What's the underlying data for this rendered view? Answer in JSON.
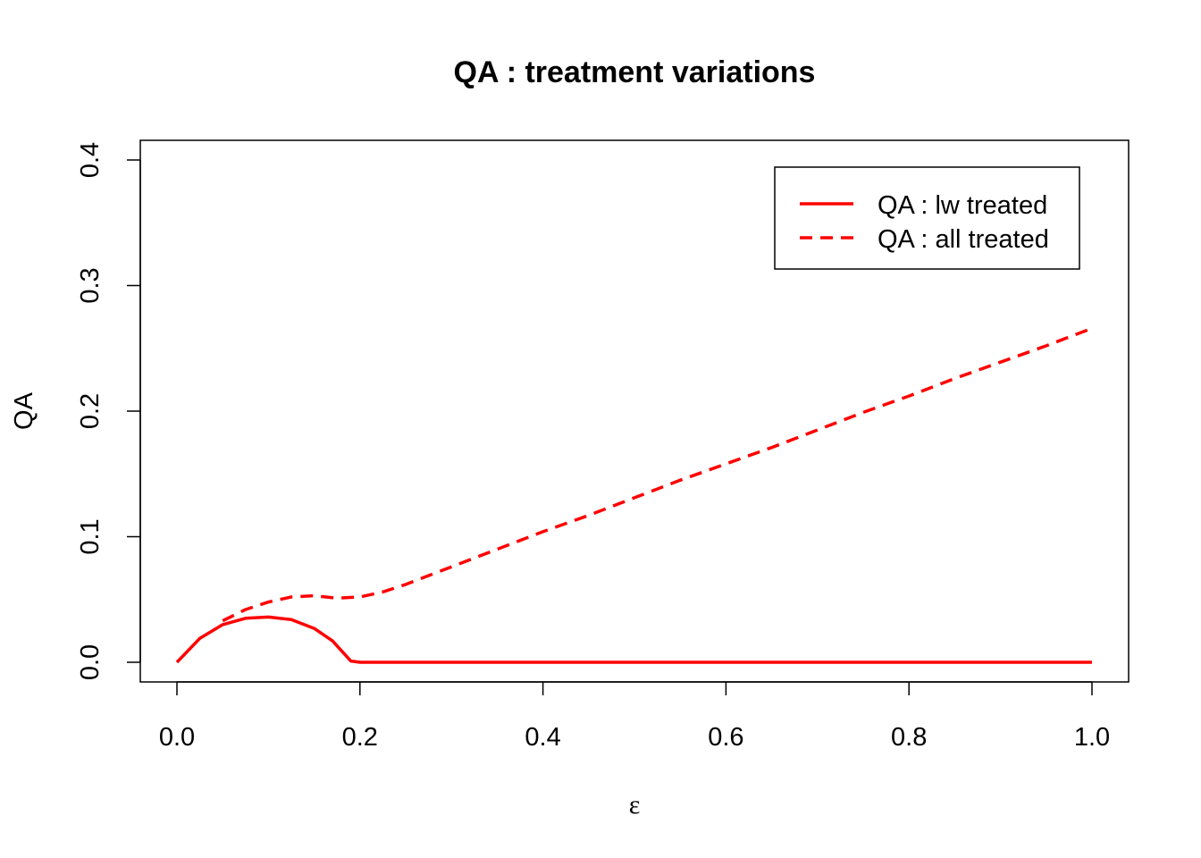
{
  "chart_data": {
    "type": "line",
    "title": "QA : treatment variations",
    "xlabel": "ε",
    "ylabel": "QA",
    "xlim": [
      0,
      1
    ],
    "ylim": [
      0,
      0.4
    ],
    "x_ticks": [
      "0.0",
      "0.2",
      "0.4",
      "0.6",
      "0.8",
      "1.0"
    ],
    "y_ticks": [
      "0.0",
      "0.1",
      "0.2",
      "0.3",
      "0.4"
    ],
    "legend_position": "top-right",
    "grid": false,
    "series": [
      {
        "name": "QA : lw treated",
        "color": "#ff0000",
        "linestyle": "solid",
        "x": [
          0,
          0.025,
          0.05,
          0.075,
          0.1,
          0.125,
          0.15,
          0.17,
          0.19,
          0.2,
          0.3,
          0.4,
          0.5,
          0.6,
          0.7,
          0.8,
          0.9,
          1.0
        ],
        "y": [
          0,
          0.019,
          0.03,
          0.035,
          0.036,
          0.034,
          0.027,
          0.017,
          0.001,
          0,
          0,
          0,
          0,
          0,
          0,
          0,
          0,
          0
        ]
      },
      {
        "name": "QA : all treated",
        "color": "#ff0000",
        "linestyle": "dashed",
        "x": [
          0.05,
          0.075,
          0.1,
          0.125,
          0.15,
          0.175,
          0.2,
          0.225,
          0.25,
          0.3,
          0.35,
          0.4,
          0.45,
          0.5,
          0.55,
          0.6,
          0.65,
          0.7,
          0.75,
          0.8,
          0.85,
          0.9,
          0.95,
          1.0
        ],
        "y": [
          0.033,
          0.042,
          0.048,
          0.052,
          0.053,
          0.051,
          0.052,
          0.056,
          0.062,
          0.076,
          0.09,
          0.104,
          0.117,
          0.131,
          0.145,
          0.158,
          0.171,
          0.185,
          0.199,
          0.212,
          0.226,
          0.239,
          0.252,
          0.266
        ]
      }
    ]
  }
}
